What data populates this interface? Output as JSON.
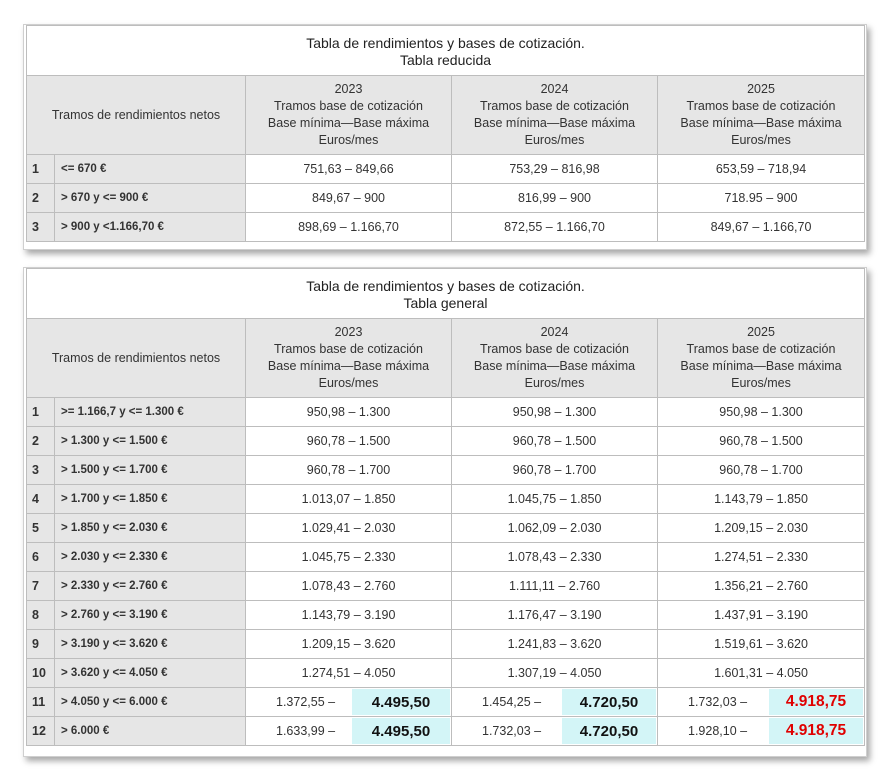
{
  "tabla_reducida": {
    "title_line1": "Tabla de rendimientos y bases de cotización.",
    "title_line2": "Tabla reducida",
    "header": {
      "tramos": "Tramos de rendimientos netos",
      "years": [
        {
          "year": "2023",
          "l1": "Tramos base de cotización",
          "l2": "Base mínima—Base máxima",
          "l3": "Euros/mes"
        },
        {
          "year": "2024",
          "l1": "Tramos base de cotización",
          "l2": "Base mínima—Base máxima",
          "l3": "Euros/mes"
        },
        {
          "year": "2025",
          "l1": "Tramos base de cotización",
          "l2": "Base mínima—Base máxima",
          "l3": "Euros/mes"
        }
      ]
    },
    "rows": [
      {
        "num": "1",
        "range": "<= 670 €",
        "y2023": "751,63 – 849,66",
        "y2024": "753,29 – 816,98",
        "y2025": "653,59 – 718,94"
      },
      {
        "num": "2",
        "range": "> 670 y <= 900 €",
        "y2023": "849,67 – 900",
        "y2024": "816,99 – 900",
        "y2025": "718.95 – 900"
      },
      {
        "num": "3",
        "range": "> 900 y <1.166,70 €",
        "y2023": "898,69 – 1.166,70",
        "y2024": "872,55 – 1.166,70",
        "y2025": "849,67 – 1.166,70"
      }
    ]
  },
  "tabla_general": {
    "title_line1": "Tabla de rendimientos y bases de cotización.",
    "title_line2": "Tabla general",
    "header": {
      "tramos": "Tramos de rendimientos netos",
      "years": [
        {
          "year": "2023",
          "l1": "Tramos base de cotización",
          "l2": "Base mínima—Base máxima",
          "l3": "Euros/mes"
        },
        {
          "year": "2024",
          "l1": "Tramos base de cotización",
          "l2": "Base mínima—Base máxima",
          "l3": "Euros/mes"
        },
        {
          "year": "2025",
          "l1": "Tramos base de cotización",
          "l2": "Base mínima—Base máxima",
          "l3": "Euros/mes"
        }
      ]
    },
    "rows": [
      {
        "num": "1",
        "range": ">= 1.166,7 y <= 1.300 €",
        "y2023": "950,98 – 1.300",
        "y2024": "950,98 – 1.300",
        "y2025": "950,98 – 1.300"
      },
      {
        "num": "2",
        "range": "> 1.300 y <= 1.500 €",
        "y2023": "960,78 – 1.500",
        "y2024": "960,78 – 1.500",
        "y2025": "960,78 – 1.500"
      },
      {
        "num": "3",
        "range": "> 1.500 y <= 1.700 €",
        "y2023": "960,78 – 1.700",
        "y2024": "960,78 – 1.700",
        "y2025": "960,78 – 1.700"
      },
      {
        "num": "4",
        "range": "> 1.700 y <= 1.850 €",
        "y2023": "1.013,07 – 1.850",
        "y2024": "1.045,75 – 1.850",
        "y2025": "1.143,79 – 1.850"
      },
      {
        "num": "5",
        "range": "> 1.850 y <= 2.030 €",
        "y2023": "1.029,41 – 2.030",
        "y2024": "1.062,09 – 2.030",
        "y2025": "1.209,15 – 2.030"
      },
      {
        "num": "6",
        "range": "> 2.030 y <= 2.330 €",
        "y2023": "1.045,75 – 2.330",
        "y2024": "1.078,43 – 2.330",
        "y2025": "1.274,51 – 2.330"
      },
      {
        "num": "7",
        "range": "> 2.330 y <= 2.760 €",
        "y2023": "1.078,43 – 2.760",
        "y2024": "1.111,11 – 2.760",
        "y2025": "1.356,21 – 2.760"
      },
      {
        "num": "8",
        "range": "> 2.760 y <= 3.190 €",
        "y2023": "1.143,79 – 3.190",
        "y2024": "1.176,47 – 3.190",
        "y2025": "1.437,91 – 3.190"
      },
      {
        "num": "9",
        "range": "> 3.190 y <= 3.620 €",
        "y2023": "1.209,15 – 3.620",
        "y2024": "1.241,83 – 3.620",
        "y2025": "1.519,61 – 3.620"
      },
      {
        "num": "10",
        "range": "> 3.620 y <= 4.050 €",
        "y2023": "1.274,51 – 4.050",
        "y2024": "1.307,19 – 4.050",
        "y2025": "1.601,31 – 4.050"
      },
      {
        "num": "11",
        "range": "> 4.050 y <= 6.000 €",
        "y2023": "1.372,55 –",
        "y2024": "1.454,25 –",
        "y2025": "1.732,03 –",
        "b2023": "4.495,50",
        "b2024": "4.720,50",
        "b2025": "4.918,75"
      },
      {
        "num": "12",
        "range": "> 6.000 €",
        "y2023": "1.633,99 –",
        "y2024": "1.732,03 –",
        "y2025": "1.928,10 –",
        "b2023": "4.495,50",
        "b2024": "4.720,50",
        "b2025": "4.918,75"
      }
    ]
  }
}
